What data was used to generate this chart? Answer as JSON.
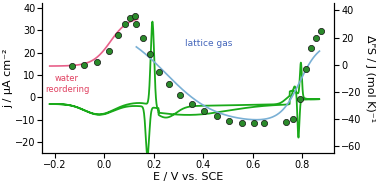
{
  "title": "",
  "xlabel": "E / V vs. SCE",
  "ylabel_left": "j / μA cm⁻²",
  "ylabel_right": "ΔᴾS / J (mol K)⁻¹",
  "xlim": [
    -0.25,
    0.93
  ],
  "ylim_left": [
    -25,
    42
  ],
  "ylim_right": [
    -65,
    45
  ],
  "background_color": "#ffffff",
  "cv_color": "#1aaa1a",
  "pink_line_color": "#e8608a",
  "blue_line_color": "#7ab0d5",
  "dot_color": "#2a8a2a",
  "dot_edge_color": "#111111",
  "label_water": "water\nreordering",
  "label_water_color": "#e04060",
  "label_lattice": "lattice gas",
  "label_lattice_color": "#4466bb",
  "tick_fontsize": 7,
  "label_fontsize": 8,
  "lw_cv": 1.3,
  "lw_entropy": 1.2
}
